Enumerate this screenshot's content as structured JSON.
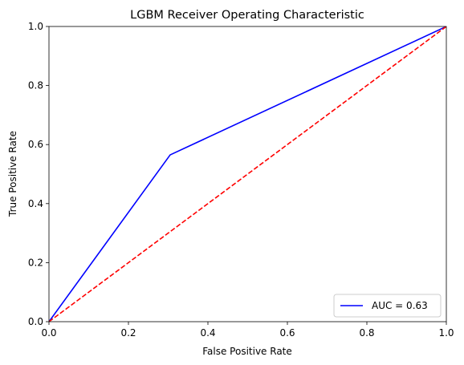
{
  "chart_data": {
    "type": "line",
    "title": "LGBM Receiver Operating Characteristic",
    "xlabel": "False Positive Rate",
    "ylabel": "True Positive Rate",
    "xlim": [
      0,
      1
    ],
    "ylim": [
      0,
      1
    ],
    "xticks": [
      "0.0",
      "0.2",
      "0.4",
      "0.6",
      "0.8",
      "1.0"
    ],
    "yticks": [
      "0.0",
      "0.2",
      "0.4",
      "0.6",
      "0.8",
      "1.0"
    ],
    "grid": false,
    "legend_position": "lower-right",
    "series": [
      {
        "name": "AUC = 0.63",
        "color": "#0000ff",
        "style": "solid",
        "x": [
          0.0,
          0.305,
          1.0
        ],
        "y": [
          0.0,
          0.565,
          1.0
        ]
      },
      {
        "color": "#ff0000",
        "style": "dashed",
        "x": [
          0.0,
          1.0
        ],
        "y": [
          0.0,
          1.0
        ]
      }
    ]
  }
}
